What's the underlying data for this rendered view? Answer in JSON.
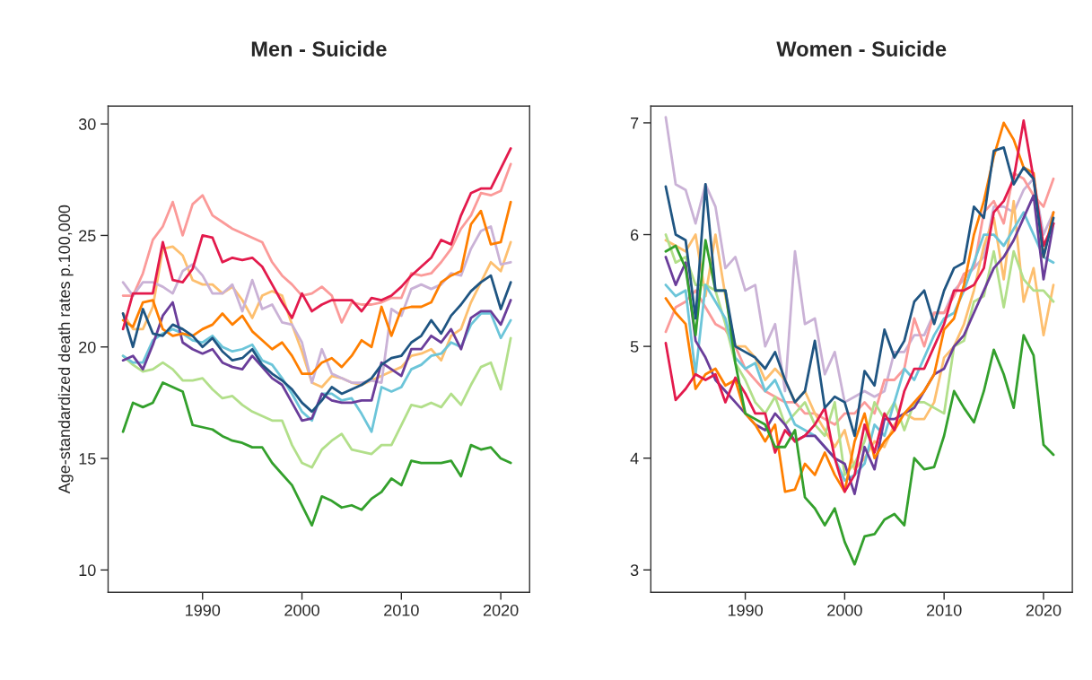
{
  "chart_data": [
    {
      "type": "line",
      "title": "Men - Suicide",
      "ylabel": "Age-standardized death rates p.100,000",
      "x": [
        1982,
        1983,
        1984,
        1985,
        1986,
        1987,
        1988,
        1989,
        1990,
        1991,
        1992,
        1993,
        1994,
        1995,
        1996,
        1997,
        1998,
        1999,
        2000,
        2001,
        2002,
        2003,
        2004,
        2005,
        2006,
        2007,
        2008,
        2009,
        2010,
        2011,
        2012,
        2013,
        2014,
        2015,
        2016,
        2017,
        2018,
        2019,
        2020,
        2021
      ],
      "xlim": [
        1980.5,
        2022.9
      ],
      "xticks": [
        1990,
        2000,
        2010,
        2020
      ],
      "ylim": [
        9,
        30.8
      ],
      "yticks": [
        10,
        15,
        20,
        25,
        30
      ],
      "grid": false,
      "legend": false,
      "marker": "none",
      "line_style": "solid",
      "series": [
        {
          "color": "#fb9a99",
          "values": [
            22.3,
            22.3,
            23.3,
            24.8,
            25.4,
            26.5,
            25.0,
            26.4,
            26.8,
            25.9,
            25.6,
            25.3,
            25.1,
            24.9,
            24.7,
            23.8,
            23.2,
            22.8,
            22.3,
            22.4,
            22.7,
            22.3,
            21.1,
            22.0,
            21.9,
            21.9,
            22.0,
            22.2,
            22.2,
            23.3,
            23.2,
            23.3,
            23.8,
            24.4,
            25.3,
            25.9,
            26.9,
            26.8,
            27.0,
            28.2
          ]
        },
        {
          "color": "#fdbf6f",
          "values": [
            21.5,
            20.8,
            20.8,
            21.8,
            24.4,
            24.5,
            24.1,
            23.0,
            22.8,
            22.8,
            22.4,
            22.7,
            22.1,
            21.3,
            22.3,
            22.5,
            22.3,
            21.0,
            19.8,
            18.4,
            18.2,
            18.7,
            18.6,
            18.4,
            18.3,
            18.5,
            18.7,
            18.9,
            19.1,
            19.6,
            19.7,
            19.9,
            19.4,
            20.5,
            20.8,
            22.0,
            22.9,
            23.8,
            23.4,
            24.7
          ]
        },
        {
          "color": "#cab2d6",
          "values": [
            22.9,
            22.3,
            22.9,
            22.9,
            22.7,
            22.4,
            23.4,
            23.7,
            23.2,
            22.4,
            22.4,
            22.8,
            21.6,
            23.0,
            21.7,
            21.9,
            21.1,
            21.0,
            20.2,
            18.4,
            19.9,
            18.8,
            18.6,
            18.4,
            18.4,
            18.5,
            18.4,
            21.7,
            21.4,
            22.6,
            22.8,
            22.6,
            22.8,
            23.3,
            23.2,
            24.4,
            25.2,
            25.4,
            23.7,
            23.8
          ]
        },
        {
          "color": "#b2df8a",
          "values": [
            19.6,
            19.2,
            18.9,
            19.0,
            19.3,
            19.0,
            18.5,
            18.5,
            18.6,
            18.1,
            17.7,
            17.8,
            17.4,
            17.1,
            16.9,
            16.7,
            16.7,
            15.6,
            14.8,
            14.6,
            15.4,
            15.8,
            16.1,
            15.4,
            15.3,
            15.2,
            15.6,
            15.6,
            16.5,
            17.4,
            17.3,
            17.5,
            17.3,
            17.9,
            17.4,
            18.3,
            19.1,
            19.3,
            18.1,
            20.4
          ]
        },
        {
          "color": "#6cc5d9",
          "values": [
            19.6,
            19.3,
            19.3,
            20.3,
            20.6,
            20.8,
            20.6,
            20.3,
            20.2,
            20.5,
            20.0,
            19.8,
            19.9,
            20.1,
            19.4,
            19.2,
            18.6,
            17.9,
            17.1,
            16.7,
            17.9,
            17.9,
            17.6,
            17.7,
            17.0,
            16.2,
            18.2,
            18.0,
            18.2,
            19.0,
            19.2,
            19.6,
            19.7,
            20.2,
            20.0,
            21.0,
            21.5,
            21.5,
            20.4,
            21.2
          ]
        },
        {
          "color": "#6a3d9a",
          "values": [
            19.4,
            19.6,
            19.0,
            20.1,
            21.4,
            22.0,
            20.2,
            19.9,
            19.7,
            19.9,
            19.3,
            19.1,
            19.0,
            19.6,
            19.1,
            18.6,
            18.3,
            17.5,
            16.7,
            16.8,
            17.9,
            17.6,
            17.5,
            17.5,
            17.6,
            17.6,
            19.3,
            19.0,
            18.7,
            19.9,
            19.9,
            20.5,
            20.2,
            20.8,
            19.9,
            21.3,
            21.6,
            21.6,
            21.0,
            22.1
          ]
        },
        {
          "color": "#ff7f00",
          "values": [
            21.2,
            20.9,
            22.0,
            22.1,
            20.8,
            20.5,
            20.6,
            20.5,
            20.8,
            21.0,
            21.5,
            21.0,
            21.4,
            20.7,
            20.3,
            19.9,
            20.2,
            19.6,
            18.8,
            18.8,
            19.3,
            19.5,
            19.1,
            19.6,
            20.3,
            20.0,
            21.8,
            20.5,
            21.7,
            21.8,
            21.8,
            22.0,
            22.9,
            23.2,
            23.4,
            25.5,
            26.1,
            24.6,
            24.7,
            26.5
          ]
        },
        {
          "color": "#1f5582",
          "values": [
            21.5,
            20.0,
            21.7,
            20.6,
            20.5,
            21.0,
            20.8,
            20.5,
            20.0,
            20.4,
            19.8,
            19.4,
            19.5,
            19.9,
            19.2,
            18.8,
            18.5,
            18.1,
            17.5,
            17.1,
            17.6,
            18.2,
            17.9,
            18.1,
            18.3,
            18.6,
            19.2,
            19.5,
            19.6,
            20.2,
            20.5,
            21.2,
            20.6,
            21.4,
            21.9,
            22.5,
            22.9,
            23.2,
            21.7,
            22.9
          ]
        },
        {
          "color": "#33a02c",
          "values": [
            16.2,
            17.5,
            17.3,
            17.5,
            18.4,
            18.2,
            18.0,
            16.5,
            16.4,
            16.3,
            16.0,
            15.8,
            15.7,
            15.5,
            15.5,
            14.8,
            14.3,
            13.8,
            12.9,
            12.0,
            13.3,
            13.1,
            12.8,
            12.9,
            12.7,
            13.2,
            13.5,
            14.1,
            13.8,
            14.9,
            14.8,
            14.8,
            14.8,
            14.9,
            14.2,
            15.6,
            15.4,
            15.5,
            15.0,
            14.8
          ]
        },
        {
          "color": "#e31a4c",
          "values": [
            20.8,
            22.4,
            22.4,
            22.4,
            24.7,
            23.0,
            22.9,
            23.5,
            25.0,
            24.9,
            23.8,
            24.0,
            23.9,
            24.0,
            23.6,
            22.8,
            22.0,
            21.3,
            22.4,
            21.6,
            21.9,
            22.1,
            22.1,
            22.1,
            21.6,
            22.2,
            22.1,
            22.3,
            22.7,
            23.2,
            23.6,
            24.0,
            24.8,
            24.6,
            25.9,
            26.9,
            27.1,
            27.1,
            28.0,
            28.9
          ]
        }
      ]
    },
    {
      "type": "line",
      "title": "Women - Suicide",
      "x": [
        1982,
        1983,
        1984,
        1985,
        1986,
        1987,
        1988,
        1989,
        1990,
        1991,
        1992,
        1993,
        1994,
        1995,
        1996,
        1997,
        1998,
        1999,
        2000,
        2001,
        2002,
        2003,
        2004,
        2005,
        2006,
        2007,
        2008,
        2009,
        2010,
        2011,
        2012,
        2013,
        2014,
        2015,
        2016,
        2017,
        2018,
        2019,
        2020,
        2021
      ],
      "xlim": [
        1980.5,
        2022.9
      ],
      "xticks": [
        1990,
        2000,
        2010,
        2020
      ],
      "ylim": [
        2.8,
        7.15
      ],
      "yticks": [
        3,
        4,
        5,
        6,
        7
      ],
      "grid": false,
      "legend": false,
      "marker": "none",
      "line_style": "solid",
      "series": [
        {
          "color": "#cab2d6",
          "values": [
            7.05,
            6.45,
            6.4,
            6.1,
            6.45,
            6.25,
            5.7,
            5.8,
            5.5,
            5.55,
            5.0,
            5.2,
            4.6,
            5.85,
            5.2,
            5.25,
            4.75,
            4.95,
            4.5,
            4.55,
            4.6,
            4.55,
            4.6,
            4.95,
            4.95,
            5.1,
            5.1,
            5.3,
            5.3,
            5.5,
            5.6,
            5.7,
            5.8,
            6.25,
            6.25,
            6.2,
            6.4,
            6.5,
            6.0,
            6.2
          ]
        },
        {
          "color": "#fb9a99",
          "values": [
            5.13,
            5.35,
            5.4,
            5.5,
            5.35,
            5.2,
            5.15,
            5.0,
            4.8,
            4.7,
            4.6,
            4.55,
            4.5,
            4.5,
            4.4,
            4.4,
            4.35,
            4.3,
            4.4,
            4.4,
            4.5,
            4.4,
            4.7,
            4.7,
            4.8,
            5.25,
            5.0,
            5.3,
            5.3,
            5.45,
            5.65,
            5.7,
            6.2,
            6.3,
            6.1,
            6.55,
            6.5,
            6.35,
            6.25,
            6.5
          ]
        },
        {
          "color": "#fdbf6f",
          "values": [
            5.95,
            5.9,
            5.85,
            6.0,
            5.45,
            6.0,
            5.45,
            5.0,
            5.0,
            4.9,
            4.7,
            4.8,
            4.7,
            4.5,
            4.6,
            4.4,
            4.25,
            4.1,
            4.25,
            3.9,
            4.0,
            4.15,
            4.1,
            4.3,
            4.4,
            4.35,
            4.35,
            4.5,
            4.9,
            5.0,
            5.2,
            5.5,
            5.9,
            6.15,
            5.6,
            6.3,
            5.4,
            5.7,
            5.1,
            5.55
          ]
        },
        {
          "color": "#b2df8a",
          "values": [
            6.0,
            5.75,
            5.8,
            5.55,
            5.55,
            5.5,
            5.2,
            4.85,
            4.7,
            4.5,
            4.4,
            4.55,
            4.3,
            4.4,
            4.5,
            4.3,
            4.2,
            4.5,
            3.85,
            3.95,
            4.15,
            4.5,
            4.35,
            4.5,
            4.25,
            4.5,
            4.5,
            4.45,
            4.4,
            5.0,
            5.05,
            5.4,
            5.45,
            5.85,
            5.35,
            5.85,
            5.6,
            5.5,
            5.5,
            5.4
          ]
        },
        {
          "color": "#6cc5d9",
          "values": [
            5.55,
            5.45,
            5.5,
            4.75,
            5.55,
            5.4,
            5.25,
            4.9,
            4.8,
            4.85,
            4.6,
            4.7,
            4.5,
            4.3,
            4.25,
            4.2,
            4.1,
            4.0,
            3.8,
            3.85,
            3.95,
            4.3,
            4.2,
            4.5,
            4.8,
            4.7,
            4.9,
            5.1,
            5.25,
            5.3,
            5.5,
            5.75,
            6.0,
            6.0,
            5.9,
            6.05,
            6.2,
            6.0,
            5.8,
            5.75
          ]
        },
        {
          "color": "#6a3d9a",
          "values": [
            5.8,
            5.55,
            5.75,
            5.05,
            4.9,
            4.7,
            4.6,
            4.5,
            4.4,
            4.3,
            4.25,
            4.4,
            4.3,
            4.15,
            4.2,
            4.2,
            4.1,
            4.0,
            3.95,
            3.68,
            4.1,
            3.9,
            4.35,
            4.35,
            4.4,
            4.45,
            4.6,
            4.75,
            4.8,
            5.0,
            5.1,
            5.3,
            5.5,
            5.7,
            5.8,
            5.95,
            6.15,
            6.35,
            5.6,
            6.1
          ]
        },
        {
          "color": "#ff7f00",
          "values": [
            5.43,
            5.3,
            5.2,
            4.62,
            4.75,
            4.8,
            4.65,
            4.7,
            4.4,
            4.3,
            4.15,
            4.3,
            3.7,
            3.72,
            3.95,
            3.85,
            4.05,
            3.85,
            3.7,
            4.15,
            4.4,
            4.0,
            4.15,
            4.25,
            4.4,
            4.5,
            4.6,
            4.75,
            5.15,
            5.25,
            5.55,
            6.0,
            6.3,
            6.7,
            7.0,
            6.85,
            6.6,
            6.55,
            5.8,
            6.2
          ]
        },
        {
          "color": "#e31a4c",
          "values": [
            5.03,
            4.52,
            4.62,
            4.75,
            4.7,
            4.75,
            4.5,
            4.72,
            4.58,
            4.4,
            4.4,
            4.05,
            4.25,
            4.15,
            4.2,
            4.3,
            4.45,
            4.0,
            3.7,
            3.85,
            4.3,
            4.05,
            4.4,
            4.25,
            4.6,
            4.8,
            4.8,
            5.0,
            5.2,
            5.5,
            5.5,
            5.55,
            5.7,
            6.2,
            6.3,
            6.5,
            7.02,
            6.5,
            5.9,
            6.1
          ]
        },
        {
          "color": "#33a02c",
          "values": [
            5.85,
            5.9,
            5.7,
            5.1,
            5.95,
            5.5,
            5.5,
            4.85,
            4.4,
            4.35,
            4.3,
            4.1,
            4.1,
            4.25,
            3.65,
            3.55,
            3.4,
            3.55,
            3.25,
            3.05,
            3.3,
            3.32,
            3.45,
            3.5,
            3.4,
            4.0,
            3.9,
            3.92,
            4.2,
            4.6,
            4.45,
            4.32,
            4.6,
            4.97,
            4.75,
            4.45,
            5.1,
            4.92,
            4.12,
            4.03
          ]
        },
        {
          "color": "#1f5582",
          "values": [
            6.43,
            6.0,
            5.95,
            5.25,
            6.45,
            5.5,
            5.5,
            5.0,
            4.95,
            4.9,
            4.8,
            4.95,
            4.7,
            4.5,
            4.6,
            5.05,
            4.45,
            4.55,
            4.5,
            4.2,
            4.78,
            4.65,
            5.15,
            4.9,
            5.05,
            5.4,
            5.5,
            5.2,
            5.5,
            5.7,
            5.75,
            6.25,
            6.15,
            6.75,
            6.78,
            6.45,
            6.6,
            6.5,
            5.8,
            6.15
          ]
        }
      ]
    }
  ]
}
